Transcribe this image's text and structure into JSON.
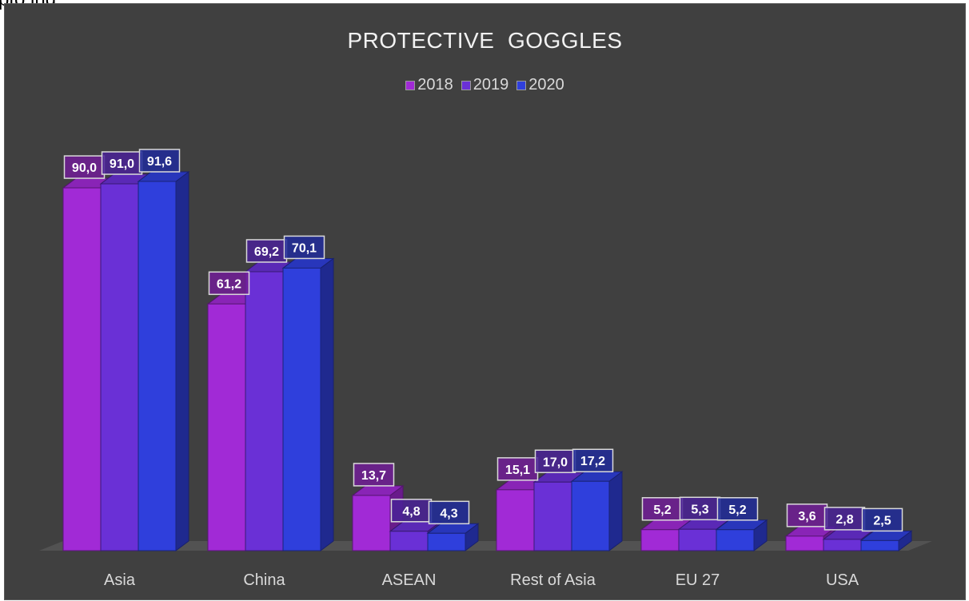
{
  "page_fragment_text": "pto ing",
  "chart_data": {
    "type": "bar",
    "title": "PROTECTIVE  GOGGLES",
    "categories": [
      "Asia",
      "China",
      "ASEAN",
      "Rest of Asia",
      "EU 27",
      "USA"
    ],
    "series": [
      {
        "name": "2018",
        "values": [
          90.0,
          61.2,
          13.7,
          15.1,
          5.2,
          3.6
        ],
        "labels": [
          "90,0",
          "61,2",
          "13,7",
          "15,1",
          "5,2",
          "3,6"
        ],
        "color": "#a12ad6"
      },
      {
        "name": "2019",
        "values": [
          91.0,
          69.2,
          4.8,
          17.0,
          5.3,
          2.8
        ],
        "labels": [
          "91,0",
          "69,2",
          "4,8",
          "17,0",
          "5,3",
          "2,8"
        ],
        "color": "#6a30d6"
      },
      {
        "name": "2020",
        "values": [
          91.6,
          70.1,
          4.3,
          17.2,
          5.2,
          2.5
        ],
        "labels": [
          "91,6",
          "70,1",
          "4,3",
          "17,2",
          "5,2",
          "2,5"
        ],
        "color": "#2f3fdc"
      }
    ],
    "legend_position": "top",
    "grid": false,
    "three_d": true,
    "ylim": [
      0,
      100
    ]
  }
}
